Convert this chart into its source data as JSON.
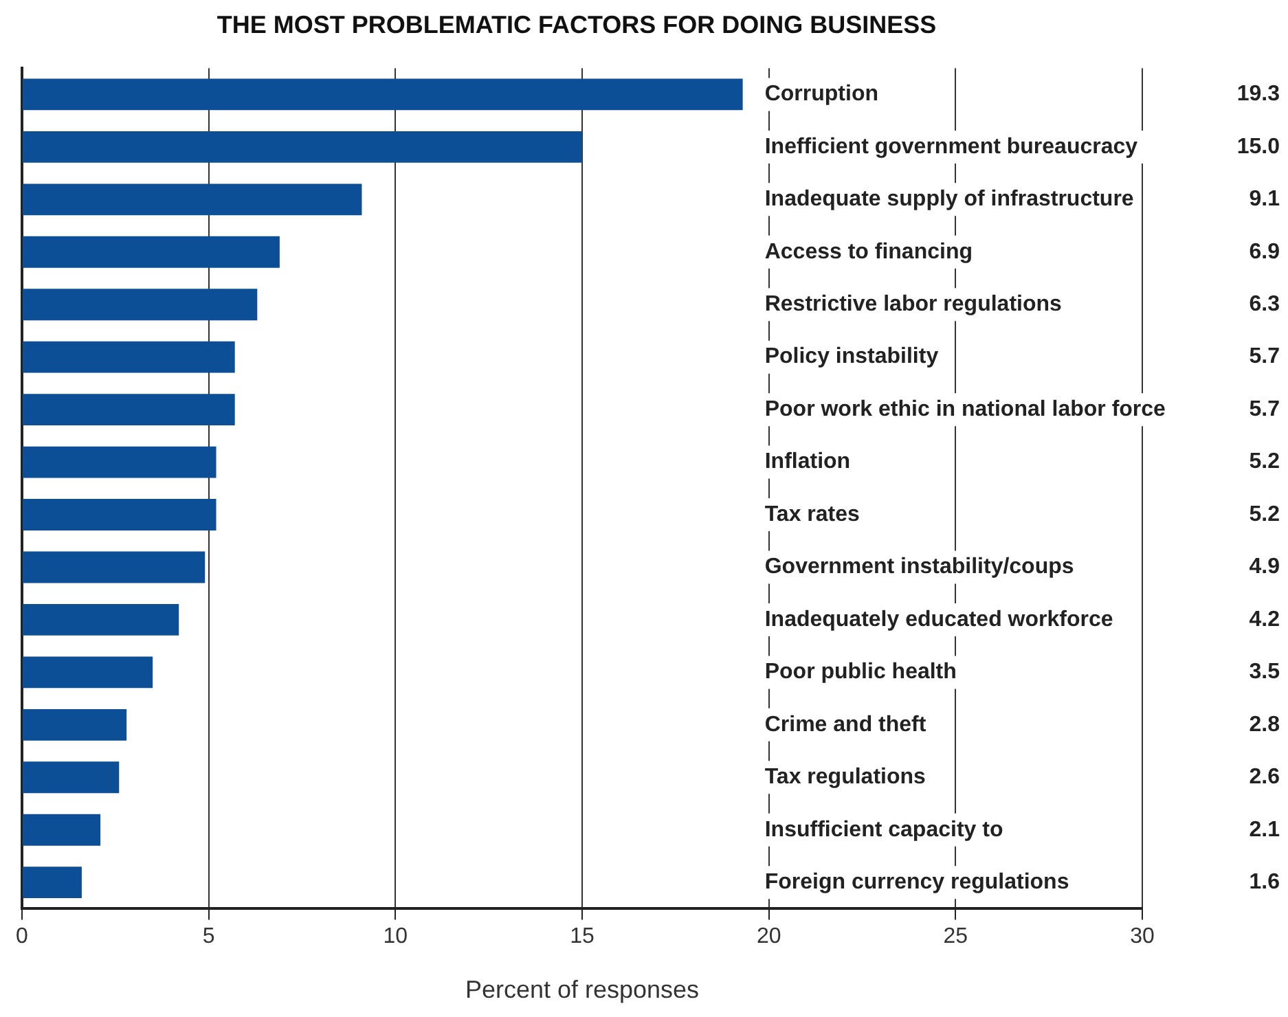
{
  "chart_data": {
    "type": "bar",
    "orientation": "horizontal",
    "title": "THE MOST PROBLEMATIC FACTORS FOR DOING BUSINESS",
    "xlabel": "Percent of responses",
    "categories": [
      "Corruption",
      "Inefficient government bureaucracy",
      "Inadequate supply of infrastructure",
      "Access to financing",
      "Restrictive labor regulations",
      "Policy instability",
      "Poor work ethic in national labor force",
      "Inflation",
      "Tax rates",
      "Government instability/coups",
      "Inadequately educated workforce",
      "Poor public health",
      "Crime and theft",
      "Tax regulations",
      "Insufficient capacity to",
      "Foreign currency regulations"
    ],
    "values": [
      19.3,
      15.0,
      9.1,
      6.9,
      6.3,
      5.7,
      5.7,
      5.2,
      5.2,
      4.9,
      4.2,
      3.5,
      2.8,
      2.6,
      2.1,
      1.6
    ],
    "value_labels": [
      "19.3",
      "15.0",
      "9.1",
      "6.9",
      "6.3",
      "5.7",
      "5.7",
      "5.2",
      "5.2",
      "4.9",
      "4.2",
      "3.5",
      "2.8",
      "2.6",
      "2.1",
      "1.6"
    ],
    "color": "#0d4f96",
    "xlim": [
      0,
      30
    ],
    "xticks": [
      0,
      5,
      10,
      15,
      20,
      25,
      30
    ],
    "grid": "x",
    "legend": false
  }
}
